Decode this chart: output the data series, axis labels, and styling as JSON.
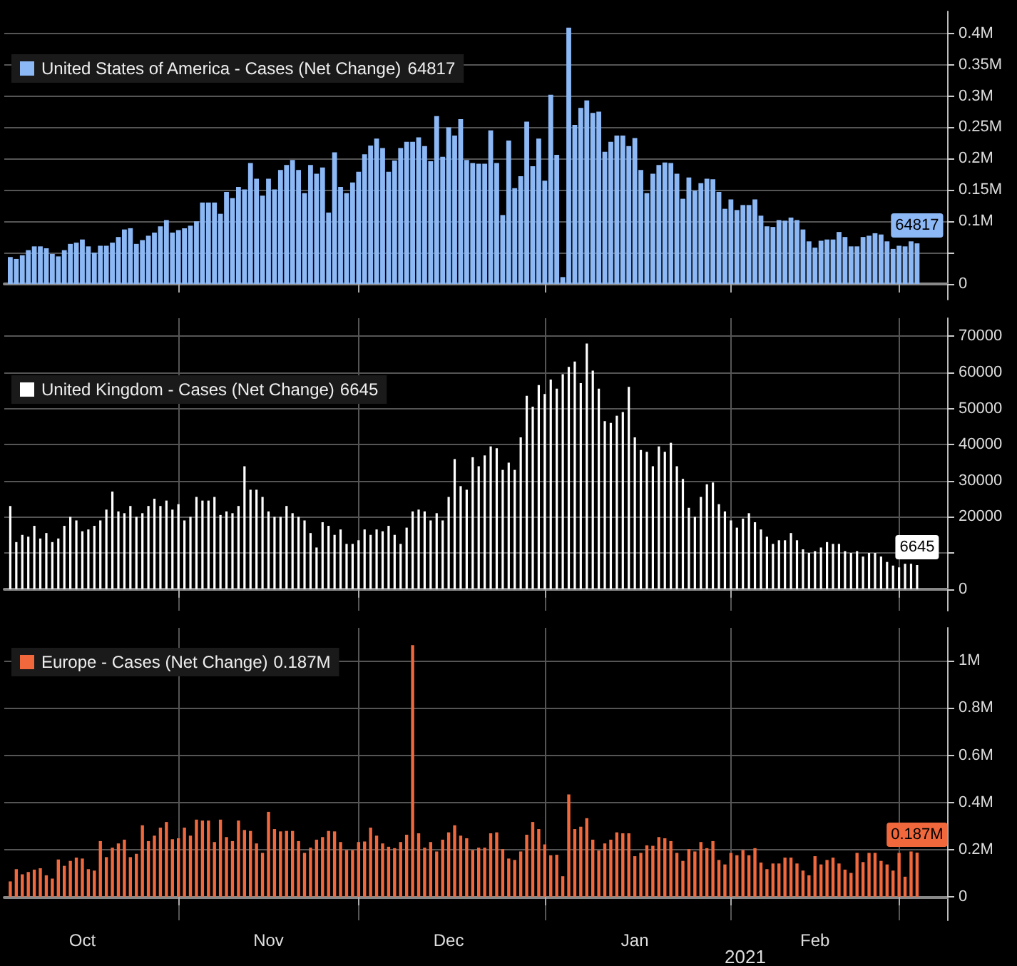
{
  "chart_data": [
    {
      "type": "bar",
      "legend": "top left",
      "grid": "y",
      "tick_labels": "y",
      "x": [
        "2020-10-04",
        "2020-10-05",
        "2020-10-06",
        "2020-10-07",
        "2020-10-08",
        "2020-10-09",
        "2020-10-10",
        "2020-10-11",
        "2020-10-12",
        "2020-10-13",
        "2020-10-14",
        "2020-10-15",
        "2020-10-16",
        "2020-10-17",
        "2020-10-18",
        "2020-10-19",
        "2020-10-20",
        "2020-10-21",
        "2020-10-22",
        "2020-10-23",
        "2020-10-24",
        "2020-10-25",
        "2020-10-26",
        "2020-10-27",
        "2020-10-28",
        "2020-10-29",
        "2020-10-30",
        "2020-10-31",
        "2020-11-01",
        "2020-11-02",
        "2020-11-03",
        "2020-11-04",
        "2020-11-05",
        "2020-11-06",
        "2020-11-07",
        "2020-11-08",
        "2020-11-09",
        "2020-11-10",
        "2020-11-11",
        "2020-11-12",
        "2020-11-13",
        "2020-11-14",
        "2020-11-15",
        "2020-11-16",
        "2020-11-17",
        "2020-11-18",
        "2020-11-19",
        "2020-11-20",
        "2020-11-21",
        "2020-11-22",
        "2020-11-23",
        "2020-11-24",
        "2020-11-25",
        "2020-11-26",
        "2020-11-27",
        "2020-11-28",
        "2020-11-29",
        "2020-11-30",
        "2020-12-01",
        "2020-12-02",
        "2020-12-03",
        "2020-12-04",
        "2020-12-05",
        "2020-12-06",
        "2020-12-07",
        "2020-12-08",
        "2020-12-09",
        "2020-12-10",
        "2020-12-11",
        "2020-12-12",
        "2020-12-13",
        "2020-12-14",
        "2020-12-15",
        "2020-12-16",
        "2020-12-17",
        "2020-12-18",
        "2020-12-19",
        "2020-12-20",
        "2020-12-21",
        "2020-12-22",
        "2020-12-23",
        "2020-12-24",
        "2020-12-25",
        "2020-12-26",
        "2020-12-27",
        "2020-12-28",
        "2020-12-29",
        "2020-12-30",
        "2020-12-31",
        "2021-01-01",
        "2021-01-02",
        "2021-01-03",
        "2021-01-04",
        "2021-01-05",
        "2021-01-06",
        "2021-01-07",
        "2021-01-08",
        "2021-01-09",
        "2021-01-10",
        "2021-01-11",
        "2021-01-12",
        "2021-01-13",
        "2021-01-14",
        "2021-01-15",
        "2021-01-16",
        "2021-01-17",
        "2021-01-18",
        "2021-01-19",
        "2021-01-20",
        "2021-01-21",
        "2021-01-22",
        "2021-01-23",
        "2021-01-24",
        "2021-01-25",
        "2021-01-26",
        "2021-01-27",
        "2021-01-28",
        "2021-01-29",
        "2021-01-30",
        "2021-01-31",
        "2021-02-01",
        "2021-02-02",
        "2021-02-03",
        "2021-02-04",
        "2021-02-05",
        "2021-02-06",
        "2021-02-07",
        "2021-02-08",
        "2021-02-09",
        "2021-02-10",
        "2021-02-11",
        "2021-02-12",
        "2021-02-13",
        "2021-02-14",
        "2021-02-15",
        "2021-02-16",
        "2021-02-17",
        "2021-02-18",
        "2021-02-19",
        "2021-02-20",
        "2021-02-21",
        "2021-02-22",
        "2021-02-23",
        "2021-02-24",
        "2021-02-25",
        "2021-02-26",
        "2021-02-27",
        "2021-02-28",
        "2021-03-01",
        "2021-03-02",
        "2021-03-03",
        "2021-03-04"
      ],
      "xlim": [
        "2020-10-03",
        "2021-03-09"
      ],
      "xticks": [
        {
          "value": "2020-11-01",
          "label": null
        },
        {
          "value": "2020-12-01",
          "label": null
        },
        {
          "value": "2021-01-01",
          "label": null
        },
        {
          "value": "2021-02-01",
          "label": null
        },
        {
          "value": "2021-03-01",
          "label": null
        }
      ],
      "ylim": [
        -25000,
        435000
      ],
      "yticks": [
        0,
        {
          "value": 50000,
          "label": null
        },
        {
          "value": 100000,
          "label": "0.1M"
        },
        {
          "value": 150000,
          "label": "0.15M"
        },
        {
          "value": 200000,
          "label": "0.2M"
        },
        {
          "value": 250000,
          "label": "0.25M"
        },
        {
          "value": 300000,
          "label": "0.3M"
        },
        {
          "value": 350000,
          "label": "0.35M"
        },
        {
          "value": 400000,
          "label": "0.4M"
        }
      ],
      "series": [
        {
          "name": "United States of America - Cases (Net Change)",
          "color": "#8cb8f5",
          "values": [
            43000,
            40000,
            46000,
            54000,
            60000,
            60000,
            57000,
            48000,
            44000,
            54000,
            64000,
            66000,
            71000,
            60000,
            50000,
            61000,
            61000,
            66000,
            75000,
            87000,
            89000,
            64000,
            70000,
            77000,
            82000,
            92000,
            102000,
            82000,
            86000,
            89000,
            93000,
            100000,
            130000,
            130000,
            130000,
            112000,
            147000,
            137000,
            155000,
            151000,
            193000,
            168000,
            141000,
            168000,
            151000,
            182000,
            190000,
            198000,
            182000,
            145000,
            190000,
            176000,
            186000,
            114000,
            210000,
            155000,
            145000,
            162000,
            179000,
            207000,
            221000,
            232000,
            217000,
            179000,
            197000,
            217000,
            227000,
            227000,
            234000,
            220000,
            196000,
            268000,
            203000,
            250000,
            237000,
            263000,
            198000,
            193000,
            192000,
            192000,
            245000,
            193000,
            110000,
            229000,
            153000,
            172000,
            259000,
            188000,
            232000,
            165000,
            302000,
            206000,
            11000,
            409000,
            254000,
            281000,
            293000,
            273000,
            275000,
            211000,
            227000,
            237000,
            237000,
            220000,
            233000,
            182000,
            145000,
            176000,
            190000,
            194000,
            193000,
            176000,
            136000,
            170000,
            149000,
            161000,
            168000,
            167000,
            147000,
            120000,
            135000,
            118000,
            126000,
            126000,
            135000,
            109000,
            92000,
            91000,
            102000,
            101000,
            106000,
            102000,
            87000,
            68000,
            58000,
            69000,
            71000,
            71000,
            83000,
            75000,
            60000,
            60000,
            75000,
            77000,
            81000,
            79000,
            68000,
            56000,
            61000,
            60000,
            68000,
            64817
          ],
          "value_labels": [
            null,
            null,
            null,
            null,
            null,
            null,
            null,
            null,
            null,
            null,
            null,
            null,
            null,
            null,
            null,
            null,
            null,
            null,
            null,
            null,
            null,
            null,
            null,
            null,
            null,
            null,
            null,
            null,
            null,
            null,
            null,
            null,
            null,
            null,
            null,
            null,
            null,
            null,
            null,
            null,
            null,
            null,
            null,
            null,
            null,
            null,
            null,
            null,
            null,
            null,
            null,
            null,
            null,
            null,
            null,
            null,
            null,
            null,
            null,
            null,
            null,
            null,
            null,
            null,
            null,
            null,
            null,
            null,
            null,
            null,
            null,
            null,
            null,
            null,
            null,
            null,
            null,
            null,
            null,
            null,
            null,
            null,
            null,
            null,
            null,
            null,
            null,
            null,
            null,
            null,
            null,
            null,
            null,
            null,
            null,
            null,
            null,
            null,
            null,
            null,
            null,
            null,
            null,
            null,
            null,
            null,
            null,
            null,
            null,
            null,
            null,
            null,
            null,
            null,
            null,
            null,
            null,
            null,
            null,
            null,
            null,
            null,
            null,
            null,
            null,
            null,
            null,
            null,
            null,
            null,
            null,
            null,
            null,
            null,
            null,
            null,
            null,
            null,
            null,
            null,
            null,
            null,
            null,
            null,
            null,
            null,
            null,
            null,
            null,
            null,
            null,
            "64817"
          ]
        }
      ]
    },
    {
      "type": "bar",
      "legend": "top left",
      "grid": true,
      "tick_labels": "y",
      "x": [
        "2020-10-04",
        "2020-10-05",
        "2020-10-06",
        "2020-10-07",
        "2020-10-08",
        "2020-10-09",
        "2020-10-10",
        "2020-10-11",
        "2020-10-12",
        "2020-10-13",
        "2020-10-14",
        "2020-10-15",
        "2020-10-16",
        "2020-10-17",
        "2020-10-18",
        "2020-10-19",
        "2020-10-20",
        "2020-10-21",
        "2020-10-22",
        "2020-10-23",
        "2020-10-24",
        "2020-10-25",
        "2020-10-26",
        "2020-10-27",
        "2020-10-28",
        "2020-10-29",
        "2020-10-30",
        "2020-10-31",
        "2020-11-01",
        "2020-11-02",
        "2020-11-03",
        "2020-11-04",
        "2020-11-05",
        "2020-11-06",
        "2020-11-07",
        "2020-11-08",
        "2020-11-09",
        "2020-11-10",
        "2020-11-11",
        "2020-11-12",
        "2020-11-13",
        "2020-11-14",
        "2020-11-15",
        "2020-11-16",
        "2020-11-17",
        "2020-11-18",
        "2020-11-19",
        "2020-11-20",
        "2020-11-21",
        "2020-11-22",
        "2020-11-23",
        "2020-11-24",
        "2020-11-25",
        "2020-11-26",
        "2020-11-27",
        "2020-11-28",
        "2020-11-29",
        "2020-11-30",
        "2020-12-01",
        "2020-12-02",
        "2020-12-03",
        "2020-12-04",
        "2020-12-05",
        "2020-12-06",
        "2020-12-07",
        "2020-12-08",
        "2020-12-09",
        "2020-12-10",
        "2020-12-11",
        "2020-12-12",
        "2020-12-13",
        "2020-12-14",
        "2020-12-15",
        "2020-12-16",
        "2020-12-17",
        "2020-12-18",
        "2020-12-19",
        "2020-12-20",
        "2020-12-21",
        "2020-12-22",
        "2020-12-23",
        "2020-12-24",
        "2020-12-25",
        "2020-12-26",
        "2020-12-27",
        "2020-12-28",
        "2020-12-29",
        "2020-12-30",
        "2020-12-31",
        "2021-01-01",
        "2021-01-02",
        "2021-01-03",
        "2021-01-04",
        "2021-01-05",
        "2021-01-06",
        "2021-01-07",
        "2021-01-08",
        "2021-01-09",
        "2021-01-10",
        "2021-01-11",
        "2021-01-12",
        "2021-01-13",
        "2021-01-14",
        "2021-01-15",
        "2021-01-16",
        "2021-01-17",
        "2021-01-18",
        "2021-01-19",
        "2021-01-20",
        "2021-01-21",
        "2021-01-22",
        "2021-01-23",
        "2021-01-24",
        "2021-01-25",
        "2021-01-26",
        "2021-01-27",
        "2021-01-28",
        "2021-01-29",
        "2021-01-30",
        "2021-01-31",
        "2021-02-01",
        "2021-02-02",
        "2021-02-03",
        "2021-02-04",
        "2021-02-05",
        "2021-02-06",
        "2021-02-07",
        "2021-02-08",
        "2021-02-09",
        "2021-02-10",
        "2021-02-11",
        "2021-02-12",
        "2021-02-13",
        "2021-02-14",
        "2021-02-15",
        "2021-02-16",
        "2021-02-17",
        "2021-02-18",
        "2021-02-19",
        "2021-02-20",
        "2021-02-21",
        "2021-02-22",
        "2021-02-23",
        "2021-02-24",
        "2021-02-25",
        "2021-02-26",
        "2021-02-27",
        "2021-02-28",
        "2021-03-01",
        "2021-03-02",
        "2021-03-03",
        "2021-03-04"
      ],
      "xlim": [
        "2020-10-03",
        "2021-03-09"
      ],
      "xticks": [
        {
          "value": "2020-11-01",
          "label": null
        },
        {
          "value": "2020-12-01",
          "label": null
        },
        {
          "value": "2021-01-01",
          "label": null
        },
        {
          "value": "2021-02-01",
          "label": null
        },
        {
          "value": "2021-03-01",
          "label": null
        }
      ],
      "ylim": [
        -6000,
        75000
      ],
      "yticks": [
        0,
        {
          "value": 10000,
          "label": null
        },
        20000,
        30000,
        40000,
        50000,
        60000,
        70000
      ],
      "series": [
        {
          "name": "United Kingdom - Cases (Net Change)",
          "color": "#ffffff",
          "values": [
            23000,
            13000,
            15000,
            14500,
            17500,
            14000,
            15500,
            13000,
            14000,
            17500,
            20000,
            19000,
            16000,
            16500,
            17500,
            19000,
            22000,
            27000,
            21500,
            21000,
            23000,
            20000,
            21000,
            23000,
            25000,
            23000,
            24500,
            22000,
            23500,
            19000,
            20000,
            25500,
            24500,
            24500,
            25500,
            20500,
            21500,
            21000,
            23000,
            34000,
            27500,
            27500,
            25500,
            21500,
            20000,
            20000,
            23000,
            21000,
            20000,
            19000,
            15500,
            11500,
            18500,
            17500,
            15000,
            16500,
            12500,
            12500,
            13500,
            16500,
            15000,
            16500,
            16000,
            17500,
            15000,
            12500,
            17000,
            21500,
            22000,
            21500,
            19000,
            21000,
            19000,
            25500,
            36000,
            28500,
            27500,
            36500,
            34000,
            37000,
            39500,
            39000,
            33000,
            35000,
            33000,
            42000,
            53500,
            50500,
            56500,
            54000,
            58000,
            55500,
            59500,
            61500,
            63000,
            57000,
            68000,
            60500,
            55500,
            46500,
            46000,
            48000,
            49000,
            56000,
            42000,
            38500,
            38000,
            34000,
            39500,
            38000,
            40500,
            34000,
            30500,
            22500,
            20000,
            25500,
            29000,
            29500,
            23500,
            21500,
            19000,
            17000,
            19500,
            21000,
            18500,
            16500,
            14500,
            12500,
            13500,
            13500,
            15500,
            13500,
            11000,
            10000,
            10500,
            11500,
            13000,
            12500,
            12500,
            10500,
            10000,
            10500,
            9000,
            10000,
            10000,
            9000,
            7500,
            6500,
            6000,
            7000,
            7000,
            6645
          ],
          "value_labels": [
            null,
            null,
            null,
            null,
            null,
            null,
            null,
            null,
            null,
            null,
            null,
            null,
            null,
            null,
            null,
            null,
            null,
            null,
            null,
            null,
            null,
            null,
            null,
            null,
            null,
            null,
            null,
            null,
            null,
            null,
            null,
            null,
            null,
            null,
            null,
            null,
            null,
            null,
            null,
            null,
            null,
            null,
            null,
            null,
            null,
            null,
            null,
            null,
            null,
            null,
            null,
            null,
            null,
            null,
            null,
            null,
            null,
            null,
            null,
            null,
            null,
            null,
            null,
            null,
            null,
            null,
            null,
            null,
            null,
            null,
            null,
            null,
            null,
            null,
            null,
            null,
            null,
            null,
            null,
            null,
            null,
            null,
            null,
            null,
            null,
            null,
            null,
            null,
            null,
            null,
            null,
            null,
            null,
            null,
            null,
            null,
            null,
            null,
            null,
            null,
            null,
            null,
            null,
            null,
            null,
            null,
            null,
            null,
            null,
            null,
            null,
            null,
            null,
            null,
            null,
            null,
            null,
            null,
            null,
            null,
            null,
            null,
            null,
            null,
            null,
            null,
            null,
            null,
            null,
            null,
            null,
            null,
            null,
            null,
            null,
            null,
            null,
            null,
            null,
            null,
            null,
            null,
            null,
            null,
            null,
            null,
            null,
            null,
            null,
            null,
            null,
            "6645"
          ]
        }
      ]
    },
    {
      "type": "bar",
      "legend": "top left",
      "grid": true,
      "annotations": [
        "2021"
      ],
      "x": [
        "2020-10-04",
        "2020-10-05",
        "2020-10-06",
        "2020-10-07",
        "2020-10-08",
        "2020-10-09",
        "2020-10-10",
        "2020-10-11",
        "2020-10-12",
        "2020-10-13",
        "2020-10-14",
        "2020-10-15",
        "2020-10-16",
        "2020-10-17",
        "2020-10-18",
        "2020-10-19",
        "2020-10-20",
        "2020-10-21",
        "2020-10-22",
        "2020-10-23",
        "2020-10-24",
        "2020-10-25",
        "2020-10-26",
        "2020-10-27",
        "2020-10-28",
        "2020-10-29",
        "2020-10-30",
        "2020-10-31",
        "2020-11-01",
        "2020-11-02",
        "2020-11-03",
        "2020-11-04",
        "2020-11-05",
        "2020-11-06",
        "2020-11-07",
        "2020-11-08",
        "2020-11-09",
        "2020-11-10",
        "2020-11-11",
        "2020-11-12",
        "2020-11-13",
        "2020-11-14",
        "2020-11-15",
        "2020-11-16",
        "2020-11-17",
        "2020-11-18",
        "2020-11-19",
        "2020-11-20",
        "2020-11-21",
        "2020-11-22",
        "2020-11-23",
        "2020-11-24",
        "2020-11-25",
        "2020-11-26",
        "2020-11-27",
        "2020-11-28",
        "2020-11-29",
        "2020-11-30",
        "2020-12-01",
        "2020-12-02",
        "2020-12-03",
        "2020-12-04",
        "2020-12-05",
        "2020-12-06",
        "2020-12-07",
        "2020-12-08",
        "2020-12-09",
        "2020-12-10",
        "2020-12-11",
        "2020-12-12",
        "2020-12-13",
        "2020-12-14",
        "2020-12-15",
        "2020-12-16",
        "2020-12-17",
        "2020-12-18",
        "2020-12-19",
        "2020-12-20",
        "2020-12-21",
        "2020-12-22",
        "2020-12-23",
        "2020-12-24",
        "2020-12-25",
        "2020-12-26",
        "2020-12-27",
        "2020-12-28",
        "2020-12-29",
        "2020-12-30",
        "2020-12-31",
        "2021-01-01",
        "2021-01-02",
        "2021-01-03",
        "2021-01-04",
        "2021-01-05",
        "2021-01-06",
        "2021-01-07",
        "2021-01-08",
        "2021-01-09",
        "2021-01-10",
        "2021-01-11",
        "2021-01-12",
        "2021-01-13",
        "2021-01-14",
        "2021-01-15",
        "2021-01-16",
        "2021-01-17",
        "2021-01-18",
        "2021-01-19",
        "2021-01-20",
        "2021-01-21",
        "2021-01-22",
        "2021-01-23",
        "2021-01-24",
        "2021-01-25",
        "2021-01-26",
        "2021-01-27",
        "2021-01-28",
        "2021-01-29",
        "2021-01-30",
        "2021-01-31",
        "2021-02-01",
        "2021-02-02",
        "2021-02-03",
        "2021-02-04",
        "2021-02-05",
        "2021-02-06",
        "2021-02-07",
        "2021-02-08",
        "2021-02-09",
        "2021-02-10",
        "2021-02-11",
        "2021-02-12",
        "2021-02-13",
        "2021-02-14",
        "2021-02-15",
        "2021-02-16",
        "2021-02-17",
        "2021-02-18",
        "2021-02-19",
        "2021-02-20",
        "2021-02-21",
        "2021-02-22",
        "2021-02-23",
        "2021-02-24",
        "2021-02-25",
        "2021-02-26",
        "2021-02-27",
        "2021-02-28",
        "2021-03-01",
        "2021-03-02",
        "2021-03-03",
        "2021-03-04"
      ],
      "xlim": [
        "2020-10-03",
        "2021-03-09"
      ],
      "xticks": [
        {
          "value": "2020-10-16",
          "label": "Oct"
        },
        {
          "value": "2020-11-01",
          "label": null
        },
        {
          "value": "2020-11-16",
          "label": "Nov"
        },
        {
          "value": "2020-12-01",
          "label": null
        },
        {
          "value": "2020-12-16",
          "label": "Dec"
        },
        {
          "value": "2021-01-01",
          "label": null
        },
        {
          "value": "2021-01-16",
          "label": "Jan"
        },
        {
          "value": "2021-02-01",
          "label": null
        },
        {
          "value": "2021-02-15",
          "label": "Feb"
        },
        {
          "value": "2021-03-01",
          "label": null
        }
      ],
      "ylim": [
        -100000,
        1140000
      ],
      "yticks": [
        0,
        {
          "value": 200000,
          "label": "0.2M"
        },
        {
          "value": 400000,
          "label": "0.4M"
        },
        {
          "value": 600000,
          "label": "0.6M"
        },
        {
          "value": 800000,
          "label": "0.8M"
        },
        {
          "value": 1000000,
          "label": "1M"
        }
      ],
      "series": [
        {
          "name": "Europe - Cases (Net Change)",
          "color": "#f0683c",
          "values": [
            65000,
            117000,
            95000,
            105000,
            115000,
            121000,
            91000,
            77000,
            158000,
            131000,
            152000,
            166000,
            162000,
            117000,
            111000,
            236000,
            168000,
            208000,
            226000,
            242000,
            168000,
            182000,
            303000,
            236000,
            259000,
            293000,
            317000,
            244000,
            248000,
            293000,
            259000,
            327000,
            323000,
            323000,
            232000,
            327000,
            253000,
            236000,
            323000,
            283000,
            279000,
            226000,
            186000,
            360000,
            287000,
            277000,
            279000,
            279000,
            236000,
            186000,
            208000,
            242000,
            253000,
            279000,
            277000,
            232000,
            198000,
            198000,
            232000,
            234000,
            293000,
            259000,
            226000,
            212000,
            206000,
            232000,
            263000,
            1067000,
            269000,
            208000,
            232000,
            192000,
            242000,
            273000,
            303000,
            259000,
            248000,
            198000,
            208000,
            208000,
            269000,
            273000,
            202000,
            162000,
            156000,
            192000,
            263000,
            317000,
            287000,
            222000,
            176000,
            178000,
            87000,
            434000,
            287000,
            297000,
            333000,
            242000,
            196000,
            226000,
            242000,
            273000,
            269000,
            269000,
            172000,
            186000,
            218000,
            216000,
            253000,
            248000,
            236000,
            186000,
            152000,
            202000,
            192000,
            232000,
            206000,
            236000,
            156000,
            137000,
            186000,
            176000,
            198000,
            176000,
            206000,
            145000,
            117000,
            141000,
            141000,
            166000,
            166000,
            141000,
            111000,
            91000,
            172000,
            137000,
            156000,
            166000,
            141000,
            115000,
            101000,
            186000,
            147000,
            186000,
            186000,
            152000,
            137000,
            111000,
            186000,
            85000,
            192000,
            187000
          ],
          "value_labels": [
            null,
            null,
            null,
            null,
            null,
            null,
            null,
            null,
            null,
            null,
            null,
            null,
            null,
            null,
            null,
            null,
            null,
            null,
            null,
            null,
            null,
            null,
            null,
            null,
            null,
            null,
            null,
            null,
            null,
            null,
            null,
            null,
            null,
            null,
            null,
            null,
            null,
            null,
            null,
            null,
            null,
            null,
            null,
            null,
            null,
            null,
            null,
            null,
            null,
            null,
            null,
            null,
            null,
            null,
            null,
            null,
            null,
            null,
            null,
            null,
            null,
            null,
            null,
            null,
            null,
            null,
            null,
            null,
            null,
            null,
            null,
            null,
            null,
            null,
            null,
            null,
            null,
            null,
            null,
            null,
            null,
            null,
            null,
            null,
            null,
            null,
            null,
            null,
            null,
            null,
            null,
            null,
            null,
            null,
            null,
            null,
            null,
            null,
            null,
            null,
            null,
            null,
            null,
            null,
            null,
            null,
            null,
            null,
            null,
            null,
            null,
            null,
            null,
            null,
            null,
            null,
            null,
            null,
            null,
            null,
            null,
            null,
            null,
            null,
            null,
            null,
            null,
            null,
            null,
            null,
            null,
            null,
            null,
            null,
            null,
            null,
            null,
            null,
            null,
            null,
            null,
            null,
            null,
            null,
            null,
            null,
            null,
            null,
            null,
            null,
            null,
            "0.187M"
          ]
        }
      ]
    }
  ]
}
